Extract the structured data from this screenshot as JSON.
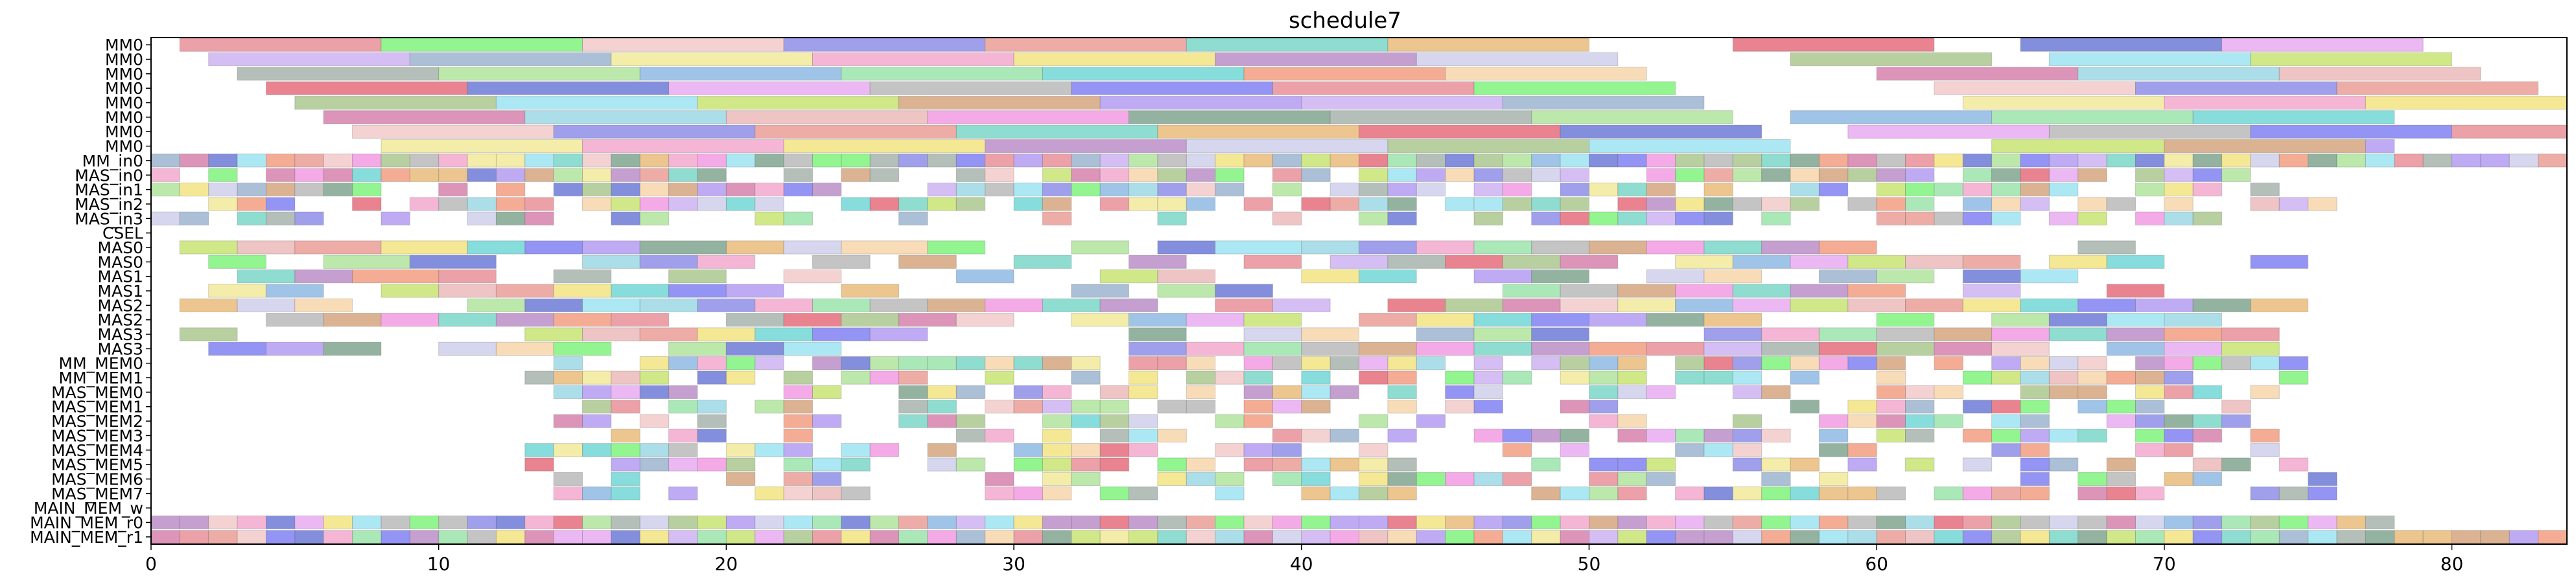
{
  "chart_data": {
    "type": "gantt",
    "title": "schedule7",
    "xlabel": "",
    "ylabel": "",
    "xlim": [
      0,
      84
    ],
    "xticks": [
      0,
      10,
      20,
      30,
      40,
      50,
      60,
      70,
      80
    ],
    "grid": false,
    "rows": [
      "MM0",
      "MM0",
      "MM0",
      "MM0",
      "MM0",
      "MM0",
      "MM0",
      "MM0",
      "MM_in0",
      "MAS_in0",
      "MAS_in1",
      "MAS_in2",
      "MAS_in3",
      "CSEL",
      "MAS0",
      "MAS0",
      "MAS1",
      "MAS1",
      "MAS2",
      "MAS2",
      "MAS3",
      "MAS3",
      "MM_MEM0",
      "MM_MEM1",
      "MAS_MEM0",
      "MAS_MEM1",
      "MAS_MEM2",
      "MAS_MEM3",
      "MAS_MEM4",
      "MAS_MEM5",
      "MAS_MEM6",
      "MAS_MEM7",
      "MAIN_MEM_w",
      "MAIN_MEM_r0",
      "MAIN_MEM_r1"
    ],
    "palette": [
      "#e6808a",
      "#cf9a6e",
      "#8fd3e0",
      "#6df26a",
      "#a98ef0",
      "#e8b0b0",
      "#f2c3c3",
      "#c6a8f0",
      "#f28de0",
      "#7f7fe6",
      "#8fa9c8",
      "#6f9a80",
      "#e89088",
      "#f0e68c",
      "#9aa9a0",
      "#6ad0c0",
      "#f29ec8",
      "#a7e08f",
      "#e6b26a",
      "#f2e070",
      "#7fb0e0",
      "#e05a6a",
      "#b07fc0",
      "#8fe0a0",
      "#5a6ad0",
      "#c8c8e8",
      "#5fd0d0",
      "#e6a0f0",
      "#a0c080",
      "#f09070",
      "#b0b0b0",
      "#90e0f0",
      "#f5d0a0",
      "#7070f0",
      "#c0e060",
      "#d070a0"
    ],
    "bars": [
      [
        [
          1,
          8
        ],
        [
          8,
          15
        ],
        [
          15,
          22
        ],
        [
          22,
          29
        ],
        [
          29,
          36
        ],
        [
          36,
          43
        ],
        [
          43,
          50
        ],
        [
          55,
          62
        ],
        [
          65,
          72
        ],
        [
          72,
          79
        ]
      ],
      [
        [
          2,
          9
        ],
        [
          9,
          16
        ],
        [
          16,
          23
        ],
        [
          23,
          30
        ],
        [
          30,
          37
        ],
        [
          37,
          44
        ],
        [
          44,
          51
        ],
        [
          57,
          64
        ],
        [
          66,
          73
        ],
        [
          73,
          80
        ]
      ],
      [
        [
          3,
          10
        ],
        [
          10,
          17
        ],
        [
          17,
          24
        ],
        [
          24,
          31
        ],
        [
          31,
          38
        ],
        [
          38,
          45
        ],
        [
          45,
          52
        ],
        [
          60,
          67
        ],
        [
          67,
          74
        ],
        [
          74,
          81
        ]
      ],
      [
        [
          4,
          11
        ],
        [
          11,
          18
        ],
        [
          18,
          25
        ],
        [
          25,
          32
        ],
        [
          32,
          39
        ],
        [
          39,
          46
        ],
        [
          46,
          53
        ],
        [
          62,
          69
        ],
        [
          69,
          76
        ],
        [
          76,
          83
        ]
      ],
      [
        [
          5,
          12
        ],
        [
          12,
          19
        ],
        [
          19,
          26
        ],
        [
          26,
          33
        ],
        [
          33,
          40
        ],
        [
          40,
          47
        ],
        [
          47,
          54
        ],
        [
          63,
          70
        ],
        [
          70,
          77
        ],
        [
          77,
          84
        ]
      ],
      [
        [
          6,
          13
        ],
        [
          13,
          20
        ],
        [
          20,
          27
        ],
        [
          27,
          34
        ],
        [
          34,
          41
        ],
        [
          41,
          48
        ],
        [
          48,
          55
        ],
        [
          57,
          64
        ],
        [
          64,
          71
        ],
        [
          71,
          78
        ]
      ],
      [
        [
          7,
          14
        ],
        [
          14,
          21
        ],
        [
          21,
          28
        ],
        [
          28,
          35
        ],
        [
          35,
          42
        ],
        [
          42,
          49
        ],
        [
          49,
          56
        ],
        [
          59,
          66
        ],
        [
          66,
          73
        ],
        [
          73,
          80
        ],
        [
          80,
          86
        ]
      ],
      [
        [
          8,
          15
        ],
        [
          15,
          22
        ],
        [
          22,
          29
        ],
        [
          29,
          36
        ],
        [
          36,
          43
        ],
        [
          43,
          50
        ],
        [
          50,
          57
        ],
        [
          64,
          70
        ],
        [
          70,
          77
        ],
        [
          77,
          78
        ]
      ]
    ],
    "dense_rows": {
      "MM_in0": [
        0,
        84,
        1.0
      ],
      "MAS_in0": [
        0,
        74,
        0.8
      ],
      "MAS_in1": [
        0,
        74,
        0.75
      ],
      "MAS_in2": [
        0,
        76,
        0.7
      ],
      "MAS_in3": [
        0,
        72,
        0.6
      ],
      "MM_MEM0": [
        13,
        75,
        0.8
      ],
      "MM_MEM1": [
        13,
        75,
        0.6
      ],
      "MAS_MEM0": [
        14,
        74,
        0.6
      ],
      "MAS_MEM1": [
        14,
        74,
        0.55
      ],
      "MAS_MEM2": [
        14,
        75,
        0.6
      ],
      "MAS_MEM3": [
        14,
        74,
        0.6
      ],
      "MAS_MEM4": [
        13,
        74,
        0.6
      ],
      "MAS_MEM5": [
        13,
        76,
        0.6
      ],
      "MAS_MEM6": [
        14,
        77,
        0.55
      ],
      "MAS_MEM7": [
        13,
        76,
        0.6
      ],
      "MAIN_MEM_w": [
        0,
        0,
        0
      ],
      "MAIN_MEM_r0": [
        0,
        78,
        1.0
      ],
      "MAIN_MEM_r1": [
        0,
        84,
        1.0
      ]
    },
    "wide_rows": {
      "CSEL": [],
      "MAS0": [
        [
          1,
          3
        ],
        [
          3,
          5
        ],
        [
          5,
          8
        ],
        [
          8,
          11
        ],
        [
          11,
          13
        ],
        [
          13,
          15
        ],
        [
          15,
          17
        ],
        [
          17,
          20
        ],
        [
          20,
          22
        ],
        [
          22,
          24
        ],
        [
          24,
          27
        ],
        [
          27,
          29
        ],
        [
          30,
          32
        ],
        [
          32,
          34
        ],
        [
          35,
          37
        ],
        [
          37,
          40
        ],
        [
          40,
          42
        ],
        [
          42,
          44
        ],
        [
          44,
          46
        ],
        [
          46,
          48
        ],
        [
          48,
          50
        ],
        [
          50,
          52
        ],
        [
          52,
          54
        ],
        [
          54,
          56
        ],
        [
          56,
          58
        ],
        [
          58,
          60
        ],
        [
          60,
          62
        ],
        [
          65,
          67
        ],
        [
          67,
          69
        ]
      ],
      "MAS0b": [
        [
          2,
          4
        ],
        [
          4,
          6
        ],
        [
          6,
          9
        ],
        [
          9,
          12
        ],
        [
          12,
          15
        ],
        [
          15,
          17
        ],
        [
          17,
          19
        ],
        [
          19,
          21
        ],
        [
          21,
          23
        ],
        [
          23,
          25
        ],
        [
          26,
          28
        ],
        [
          28,
          30
        ],
        [
          30,
          32
        ],
        [
          34,
          36
        ],
        [
          36,
          38
        ],
        [
          38,
          40
        ],
        [
          41,
          43
        ],
        [
          43,
          45
        ],
        [
          45,
          47
        ],
        [
          47,
          49
        ],
        [
          49,
          51
        ],
        [
          51,
          53
        ],
        [
          53,
          55
        ],
        [
          55,
          57
        ],
        [
          57,
          59
        ],
        [
          59,
          61
        ],
        [
          61,
          63
        ],
        [
          63,
          65
        ],
        [
          66,
          68
        ],
        [
          68,
          70
        ],
        [
          73,
          75
        ]
      ],
      "MAS1": [
        [
          1,
          3
        ],
        [
          3,
          5
        ],
        [
          5,
          7
        ],
        [
          7,
          10
        ],
        [
          10,
          12
        ],
        [
          12,
          14
        ],
        [
          14,
          16
        ],
        [
          16,
          18
        ],
        [
          18,
          20
        ],
        [
          20,
          22
        ],
        [
          22,
          24
        ],
        [
          24,
          27
        ],
        [
          28,
          30
        ],
        [
          31,
          33
        ],
        [
          33,
          35
        ],
        [
          35,
          37
        ],
        [
          37,
          40
        ],
        [
          40,
          42
        ],
        [
          42,
          44
        ],
        [
          44,
          46
        ],
        [
          46,
          48
        ],
        [
          48,
          50
        ],
        [
          50,
          52
        ],
        [
          52,
          54
        ],
        [
          54,
          56
        ],
        [
          56,
          58
        ],
        [
          58,
          60
        ],
        [
          60,
          62
        ],
        [
          63,
          65
        ],
        [
          65,
          67
        ],
        [
          67,
          69
        ],
        [
          72,
          74
        ]
      ],
      "MAS1b": [
        [
          2,
          4
        ],
        [
          4,
          6
        ],
        [
          6,
          8
        ],
        [
          8,
          10
        ],
        [
          10,
          12
        ],
        [
          12,
          14
        ],
        [
          14,
          16
        ],
        [
          16,
          18
        ],
        [
          18,
          20
        ],
        [
          20,
          22
        ],
        [
          22,
          24
        ],
        [
          24,
          26
        ],
        [
          26,
          28
        ],
        [
          28,
          30
        ],
        [
          30,
          32
        ],
        [
          32,
          34
        ],
        [
          35,
          37
        ],
        [
          37,
          39
        ],
        [
          39,
          41
        ],
        [
          41,
          43
        ],
        [
          43,
          45
        ],
        [
          45,
          47
        ],
        [
          47,
          49
        ],
        [
          49,
          51
        ],
        [
          51,
          53
        ],
        [
          53,
          55
        ],
        [
          55,
          57
        ],
        [
          57,
          59
        ],
        [
          59,
          61
        ],
        [
          61,
          63
        ],
        [
          63,
          65
        ],
        [
          66,
          68
        ],
        [
          68,
          70
        ],
        [
          73,
          75
        ]
      ],
      "MAS2": [
        [
          1,
          3
        ],
        [
          3,
          5
        ],
        [
          5,
          7
        ],
        [
          7,
          9
        ],
        [
          9,
          11
        ],
        [
          11,
          13
        ],
        [
          13,
          15
        ],
        [
          15,
          17
        ],
        [
          17,
          19
        ],
        [
          19,
          21
        ],
        [
          21,
          23
        ],
        [
          23,
          25
        ],
        [
          25,
          27
        ],
        [
          27,
          29
        ],
        [
          29,
          31
        ],
        [
          31,
          33
        ],
        [
          33,
          35
        ],
        [
          35,
          37
        ],
        [
          37,
          39
        ],
        [
          39,
          41
        ],
        [
          41,
          43
        ],
        [
          43,
          45
        ],
        [
          45,
          47
        ],
        [
          47,
          49
        ],
        [
          49,
          51
        ],
        [
          51,
          53
        ],
        [
          53,
          55
        ],
        [
          55,
          57
        ],
        [
          57,
          59
        ],
        [
          59,
          61
        ],
        [
          61,
          63
        ],
        [
          63,
          65
        ],
        [
          65,
          67
        ],
        [
          67,
          69
        ],
        [
          69,
          71
        ],
        [
          71,
          73
        ],
        [
          73,
          75
        ],
        [
          75,
          77
        ]
      ],
      "MAS2b": [
        [
          2,
          4
        ],
        [
          4,
          6
        ],
        [
          6,
          8
        ],
        [
          8,
          10
        ],
        [
          10,
          12
        ],
        [
          12,
          14
        ],
        [
          14,
          16
        ],
        [
          16,
          18
        ],
        [
          18,
          20
        ],
        [
          20,
          22
        ],
        [
          22,
          24
        ],
        [
          24,
          26
        ],
        [
          26,
          28
        ],
        [
          28,
          30
        ],
        [
          32,
          34
        ],
        [
          34,
          36
        ],
        [
          36,
          38
        ],
        [
          38,
          40
        ],
        [
          40,
          42
        ],
        [
          42,
          44
        ],
        [
          44,
          46
        ],
        [
          46,
          48
        ],
        [
          48,
          50
        ],
        [
          50,
          52
        ],
        [
          52,
          54
        ],
        [
          54,
          56
        ],
        [
          56,
          58
        ],
        [
          58,
          60
        ],
        [
          60,
          62
        ],
        [
          62,
          64
        ],
        [
          64,
          66
        ],
        [
          66,
          68
        ],
        [
          68,
          70
        ],
        [
          70,
          72
        ]
      ],
      "MAS3": [
        [
          1,
          3
        ],
        [
          3,
          5
        ],
        [
          5,
          7
        ],
        [
          7,
          9
        ],
        [
          9,
          11
        ],
        [
          11,
          13
        ],
        [
          13,
          15
        ],
        [
          15,
          17
        ],
        [
          17,
          19
        ],
        [
          19,
          21
        ],
        [
          21,
          23
        ],
        [
          23,
          25
        ],
        [
          25,
          27
        ],
        [
          34,
          36
        ],
        [
          36,
          38
        ],
        [
          38,
          40
        ],
        [
          40,
          42
        ],
        [
          42,
          44
        ],
        [
          44,
          46
        ],
        [
          46,
          48
        ],
        [
          48,
          50
        ],
        [
          50,
          52
        ],
        [
          52,
          54
        ],
        [
          54,
          56
        ],
        [
          56,
          58
        ],
        [
          58,
          60
        ],
        [
          60,
          62
        ],
        [
          62,
          64
        ],
        [
          64,
          66
        ],
        [
          66,
          68
        ],
        [
          68,
          70
        ],
        [
          70,
          72
        ],
        [
          72,
          74
        ]
      ],
      "MAS3b": [
        [
          2,
          4
        ],
        [
          4,
          6
        ],
        [
          6,
          8
        ],
        [
          8,
          10
        ],
        [
          10,
          12
        ],
        [
          12,
          14
        ],
        [
          14,
          16
        ],
        [
          16,
          18
        ],
        [
          18,
          20
        ],
        [
          20,
          22
        ],
        [
          22,
          24
        ],
        [
          32,
          34
        ],
        [
          34,
          36
        ],
        [
          36,
          38
        ],
        [
          38,
          40
        ],
        [
          40,
          42
        ],
        [
          42,
          44
        ],
        [
          44,
          46
        ],
        [
          46,
          48
        ],
        [
          48,
          50
        ],
        [
          50,
          52
        ],
        [
          52,
          54
        ],
        [
          54,
          56
        ],
        [
          56,
          58
        ],
        [
          58,
          60
        ],
        [
          60,
          62
        ],
        [
          62,
          64
        ],
        [
          64,
          66
        ],
        [
          66,
          68
        ],
        [
          68,
          70
        ],
        [
          70,
          72
        ],
        [
          72,
          74
        ]
      ]
    }
  }
}
